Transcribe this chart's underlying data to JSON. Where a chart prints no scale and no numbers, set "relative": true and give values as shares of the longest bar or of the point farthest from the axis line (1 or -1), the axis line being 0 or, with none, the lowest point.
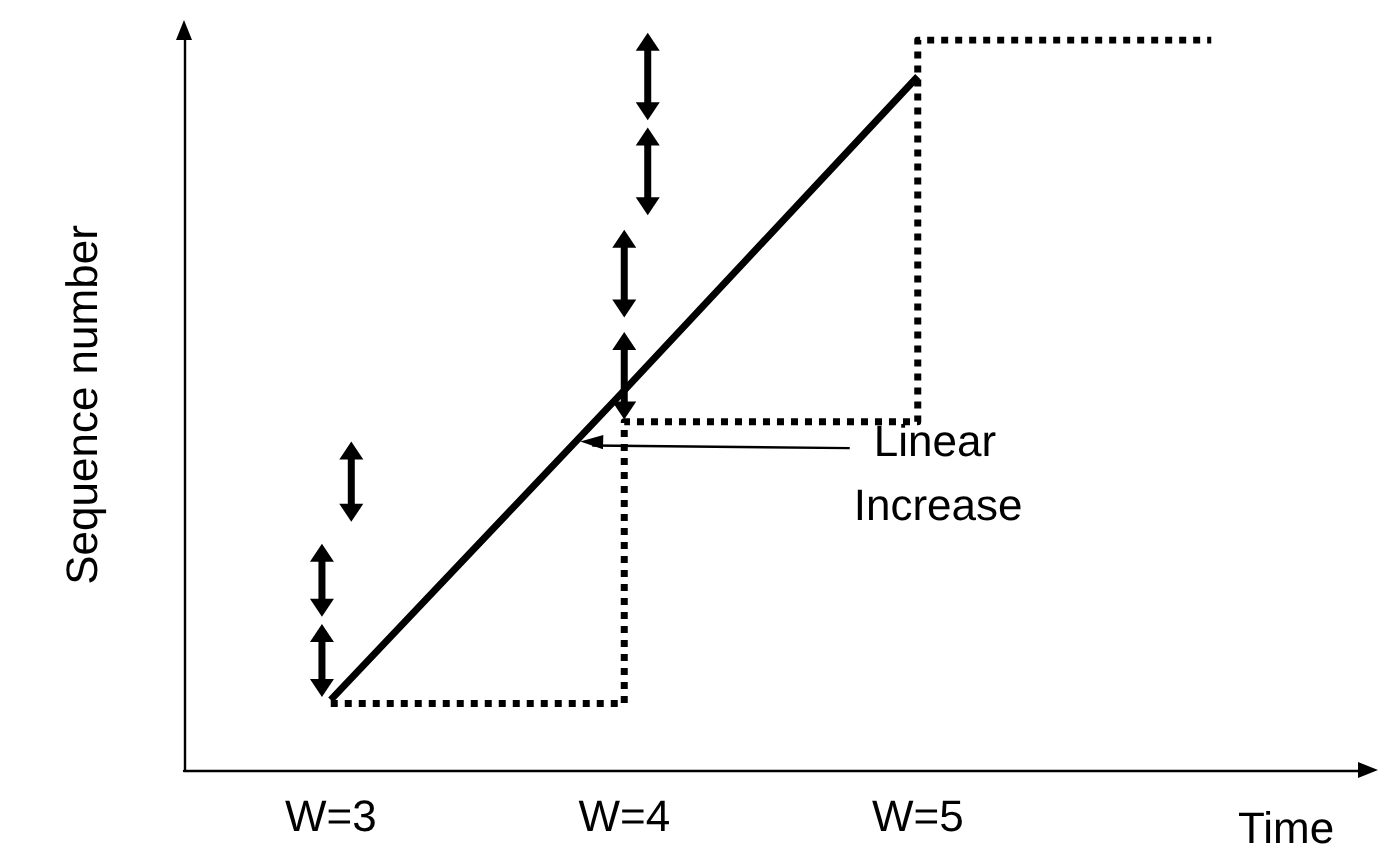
{
  "chart_data": {
    "type": "line",
    "xlabel": "Time",
    "ylabel": "Sequence number",
    "relative": true,
    "categories": [
      "W=3",
      "W=4",
      "W=5",
      null
    ],
    "series": [
      {
        "type": "line",
        "color": "#000000",
        "line_style": "solid",
        "values": [
          0.096,
          0.52,
          0.95,
          null
        ]
      },
      {
        "type": "step",
        "color": "#000000",
        "line_style": "dotted",
        "values": [
          0.091,
          0.477,
          1,
          1
        ]
      }
    ],
    "annotations": [
      "Linear Increase"
    ],
    "grid": false,
    "marker": "none"
  }
}
